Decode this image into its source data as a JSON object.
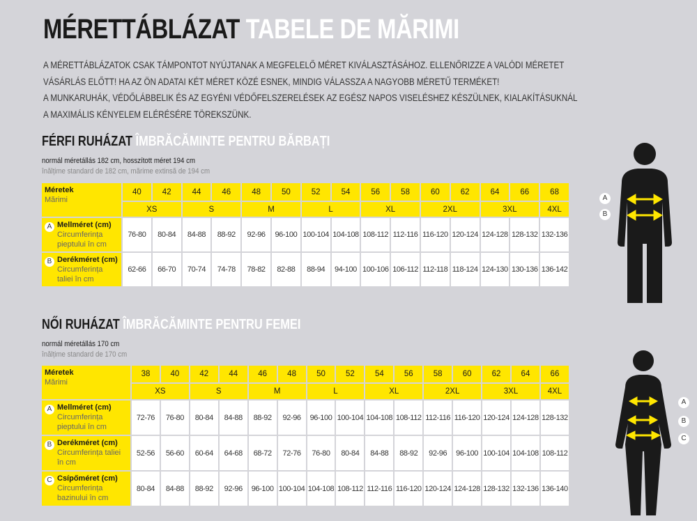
{
  "title": {
    "hu": "MÉRETTÁBLÁZAT",
    "ro": "TABELE DE MĂRIMI"
  },
  "intro": [
    "A MÉRETTÁBLÁZATOK CSAK TÁMPONTOT NYÚJTANAK A MEGFELELŐ MÉRET KIVÁLASZTÁSÁHOZ. ELLENŐRIZZE A VALÓDI MÉRETET",
    "VÁSÁRLÁS ELŐTT! HA AZ ÖN ADATAI KÉT MÉRET KÖZÉ ESNEK, MINDIG VÁLASSZA A NAGYOBB MÉRETŰ TERMÉKET!",
    "A MUNKARUHÁK, VÉDŐLÁBBELIK ÉS AZ EGYÉNI VÉDŐFELSZERELÉSEK AZ EGÉSZ NAPOS VISELÉSHEZ KÉSZÜLNEK, KIALAKÍTÁSUKNÁL",
    "A MAXIMÁLIS KÉNYELEM ELÉRÉSÉRE TÖREKSZÜNK."
  ],
  "colors": {
    "accent": "#ffe600",
    "background": "#d4d4d9",
    "figure": "#1a1a1a"
  },
  "men": {
    "heading_hu": "FÉRFI RUHÁZAT",
    "heading_ro": "ÎMBRĂCĂMINTE PENTRU BĂRBAȚI",
    "note_hu": "normál méretállás 182 cm, hosszított méret 194 cm",
    "note_ro": "înălțime standard de 182 cm, mărime extinsă de 194 cm",
    "size_label_hu": "Méretek",
    "size_label_ro": "Mărimi",
    "sizes": [
      "40",
      "42",
      "44",
      "46",
      "48",
      "50",
      "52",
      "54",
      "56",
      "58",
      "60",
      "62",
      "64",
      "66",
      "68"
    ],
    "letter_sizes": [
      [
        "XS",
        2
      ],
      [
        "S",
        2
      ],
      [
        "M",
        2
      ],
      [
        "L",
        2
      ],
      [
        "XL",
        2
      ],
      [
        "2XL",
        2
      ],
      [
        "3XL",
        2
      ],
      [
        "4XL",
        1
      ]
    ],
    "rows": [
      {
        "letter": "A",
        "hu": "Mellméret (cm)",
        "ro": "Circumferința pieptului în cm",
        "values": [
          "76-80",
          "80-84",
          "84-88",
          "88-92",
          "92-96",
          "96-100",
          "100-104",
          "104-108",
          "108-112",
          "112-116",
          "116-120",
          "120-124",
          "124-128",
          "128-132",
          "132-136"
        ]
      },
      {
        "letter": "B",
        "hu": "Derékméret (cm)",
        "ro": "Circumferința taliei în cm",
        "values": [
          "62-66",
          "66-70",
          "70-74",
          "74-78",
          "78-82",
          "82-88",
          "88-94",
          "94-100",
          "100-106",
          "106-112",
          "112-118",
          "118-124",
          "124-130",
          "130-136",
          "136-142"
        ]
      }
    ],
    "figure_labels": [
      "A",
      "B"
    ]
  },
  "women": {
    "heading_hu": "NŐI RUHÁZAT",
    "heading_ro": "ÎMBRĂCĂMINTE PENTRU FEMEI",
    "note_hu": "normál méretállás 170 cm",
    "note_ro": "înălțime standard de 170 cm",
    "size_label_hu": "Méretek",
    "size_label_ro": "Mărimi",
    "sizes": [
      "38",
      "40",
      "42",
      "44",
      "46",
      "48",
      "50",
      "52",
      "54",
      "56",
      "58",
      "60",
      "62",
      "64",
      "66"
    ],
    "letter_sizes": [
      [
        "XS",
        2
      ],
      [
        "S",
        2
      ],
      [
        "M",
        2
      ],
      [
        "L",
        2
      ],
      [
        "XL",
        2
      ],
      [
        "2XL",
        2
      ],
      [
        "3XL",
        2
      ],
      [
        "4XL",
        1
      ]
    ],
    "rows": [
      {
        "letter": "A",
        "hu": "Mellméret (cm)",
        "ro": "Circumferința pieptului în cm",
        "values": [
          "72-76",
          "76-80",
          "80-84",
          "84-88",
          "88-92",
          "92-96",
          "96-100",
          "100-104",
          "104-108",
          "108-112",
          "112-116",
          "116-120",
          "120-124",
          "124-128",
          "128-132"
        ]
      },
      {
        "letter": "B",
        "hu": "Derékméret (cm)",
        "ro": "Circumferința taliei în cm",
        "values": [
          "52-56",
          "56-60",
          "60-64",
          "64-68",
          "68-72",
          "72-76",
          "76-80",
          "80-84",
          "84-88",
          "88-92",
          "92-96",
          "96-100",
          "100-104",
          "104-108",
          "108-112"
        ]
      },
      {
        "letter": "C",
        "hu": "Csípőméret (cm)",
        "ro": "Circumferința bazinului în cm",
        "values": [
          "80-84",
          "84-88",
          "88-92",
          "92-96",
          "96-100",
          "100-104",
          "104-108",
          "108-112",
          "112-116",
          "116-120",
          "120-124",
          "124-128",
          "128-132",
          "132-136",
          "136-140"
        ]
      }
    ],
    "figure_labels": [
      "A",
      "B",
      "C"
    ]
  }
}
